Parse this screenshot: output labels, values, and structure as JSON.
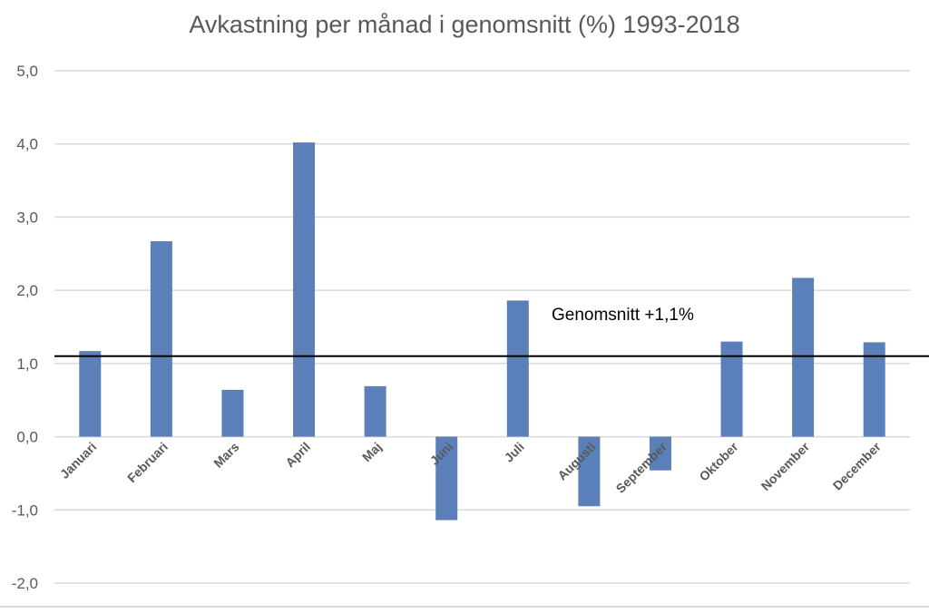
{
  "chart_data": {
    "type": "bar",
    "title": "Avkastning per månad i genomsnitt (%) 1993-2018",
    "xlabel": "",
    "ylabel": "",
    "categories": [
      "Januari",
      "Februari",
      "Mars",
      "April",
      "Maj",
      "Juni",
      "Juli",
      "Augusti",
      "September",
      "Oktober",
      "November",
      "December"
    ],
    "values": [
      1.17,
      2.67,
      0.64,
      4.02,
      0.69,
      -1.14,
      1.86,
      -0.95,
      -0.46,
      1.3,
      2.17,
      1.29
    ],
    "ylim": [
      -2.0,
      5.0
    ],
    "yticks": [
      "-2,0",
      "-1,0",
      "0,0",
      "1,0",
      "2,0",
      "3,0",
      "4,0",
      "5,0"
    ],
    "ytick_values": [
      -2,
      -1,
      0,
      1,
      2,
      3,
      4,
      5
    ],
    "grid": true,
    "bar_color": "#5a7fb9",
    "reference_line": {
      "value": 1.1,
      "label": "Genomsnitt +1,1%",
      "color": "#000000"
    }
  }
}
